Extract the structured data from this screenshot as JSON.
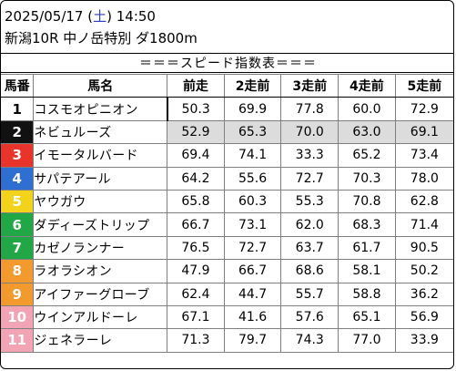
{
  "header": {
    "date": "2025/05/17",
    "weekday": "土",
    "time": "14:50",
    "race_info": "新潟10R 中ノ岳特別 ダ1800m"
  },
  "title": "＝＝＝スピード指数表＝＝＝",
  "columns": [
    "馬番",
    "馬名",
    "前走",
    "2走前",
    "3走前",
    "4走前",
    "5走前"
  ],
  "rows": [
    {
      "no": "1",
      "name": "コスモオピニオン",
      "vals": [
        "50.3",
        "69.9",
        "77.8",
        "60.0",
        "72.9"
      ],
      "color": "#ffffff",
      "fg": "#000000",
      "highlight": false
    },
    {
      "no": "2",
      "name": "ネビュルーズ",
      "vals": [
        "52.9",
        "65.3",
        "70.0",
        "63.0",
        "69.1"
      ],
      "color": "#111111",
      "fg": "#ffffff",
      "highlight": true
    },
    {
      "no": "3",
      "name": "イモータルバード",
      "vals": [
        "69.4",
        "74.1",
        "33.3",
        "65.2",
        "73.4"
      ],
      "color": "#e8342a",
      "fg": "#ffffff",
      "highlight": false
    },
    {
      "no": "4",
      "name": "サパテアール",
      "vals": [
        "64.2",
        "55.6",
        "72.7",
        "70.3",
        "78.0"
      ],
      "color": "#2f6fd1",
      "fg": "#ffffff",
      "highlight": false
    },
    {
      "no": "5",
      "name": "ヤウガウ",
      "vals": [
        "65.8",
        "60.3",
        "55.3",
        "70.8",
        "62.8"
      ],
      "color": "#f2d21b",
      "fg": "#ffffff",
      "highlight": false
    },
    {
      "no": "6",
      "name": "ダディーズトリップ",
      "vals": [
        "66.7",
        "73.1",
        "62.0",
        "68.3",
        "71.4"
      ],
      "color": "#22a746",
      "fg": "#ffffff",
      "highlight": false
    },
    {
      "no": "7",
      "name": "カゼノランナー",
      "vals": [
        "76.5",
        "72.7",
        "63.7",
        "61.7",
        "90.5"
      ],
      "color": "#22a746",
      "fg": "#ffffff",
      "highlight": false
    },
    {
      "no": "8",
      "name": "ラオラシオン",
      "vals": [
        "47.9",
        "66.7",
        "68.6",
        "58.1",
        "50.2"
      ],
      "color": "#f39a2e",
      "fg": "#ffffff",
      "highlight": false
    },
    {
      "no": "9",
      "name": "アイファーグローブ",
      "vals": [
        "62.4",
        "44.7",
        "55.7",
        "58.8",
        "36.2"
      ],
      "color": "#f39a2e",
      "fg": "#ffffff",
      "highlight": false
    },
    {
      "no": "10",
      "name": "ウインアルドーレ",
      "vals": [
        "67.1",
        "41.6",
        "57.6",
        "65.1",
        "56.9"
      ],
      "color": "#f2a3b4",
      "fg": "#ffffff",
      "highlight": false
    },
    {
      "no": "11",
      "name": "ジェネラーレ",
      "vals": [
        "71.3",
        "79.7",
        "74.3",
        "77.0",
        "33.9"
      ],
      "color": "#f2a3b4",
      "fg": "#ffffff",
      "highlight": false
    }
  ]
}
